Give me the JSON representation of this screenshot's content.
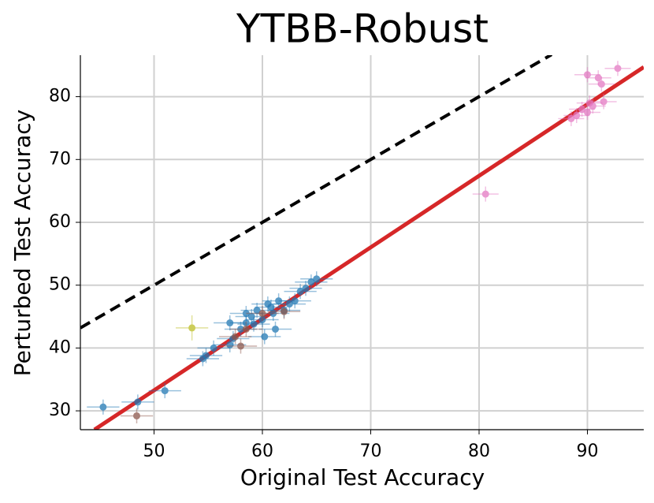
{
  "chart_data": {
    "type": "scatter",
    "title": "YTBB-Robust",
    "x_label": "Original Test Accuracy",
    "y_label": "Perturbed Test Accuracy",
    "xlim": [
      43.2,
      95.2
    ],
    "ylim": [
      27.0,
      86.6
    ],
    "xticks": [
      50,
      60,
      70,
      80,
      90
    ],
    "yticks": [
      30,
      40,
      50,
      60,
      70,
      80
    ],
    "grid": true,
    "lines": [
      {
        "color": "#000000",
        "dashed": true,
        "x": [
          43.2,
          86.7
        ],
        "y": [
          43.2,
          86.7
        ]
      },
      {
        "color": "#d62728",
        "dashed": false,
        "x": [
          44.5,
          95.2
        ],
        "y": [
          27.0,
          84.7
        ]
      }
    ],
    "series": [
      {
        "color": "#1f77b4",
        "xerr": 1.5,
        "yerr": 1.2,
        "x": [
          45.3,
          48.5,
          51.0,
          54.5,
          54.8,
          55.5,
          57.0,
          57.3,
          57.0,
          58.0,
          58.5,
          59.0,
          59.2,
          59.5,
          60.0,
          60.2,
          60.5,
          61.0,
          61.2,
          61.5,
          62.0,
          62.5,
          63.0,
          63.5,
          64.0,
          64.5,
          65.0,
          58.5,
          60.8
        ],
        "y": [
          30.6,
          31.4,
          33.2,
          38.3,
          38.8,
          40.0,
          40.5,
          41.5,
          44.0,
          43.0,
          44.0,
          45.0,
          43.8,
          46.0,
          44.5,
          41.8,
          47.0,
          45.5,
          43.0,
          47.5,
          46.0,
          47.0,
          47.5,
          49.0,
          49.5,
          50.5,
          51.0,
          45.5,
          46.5
        ]
      },
      {
        "color": "#8c564b",
        "xerr": 1.5,
        "yerr": 1.2,
        "x": [
          48.4,
          57.5,
          58.0,
          58.5,
          60.0,
          62.0
        ],
        "y": [
          29.2,
          41.8,
          40.3,
          43.0,
          45.5,
          45.8
        ]
      },
      {
        "color": "#bcbd22",
        "xerr": 1.5,
        "yerr": 2.0,
        "x": [
          53.5
        ],
        "y": [
          43.2
        ]
      },
      {
        "color": "#e377c2",
        "xerr": 1.2,
        "yerr": 1.2,
        "x": [
          80.6,
          88.5,
          89.0,
          89.5,
          90.0,
          90.2,
          90.5,
          91.0,
          91.3,
          91.5,
          92.8,
          90.0
        ],
        "y": [
          64.5,
          76.5,
          77.0,
          78.0,
          77.5,
          79.0,
          78.5,
          83.0,
          82.0,
          79.2,
          84.5,
          83.5
        ]
      }
    ]
  }
}
